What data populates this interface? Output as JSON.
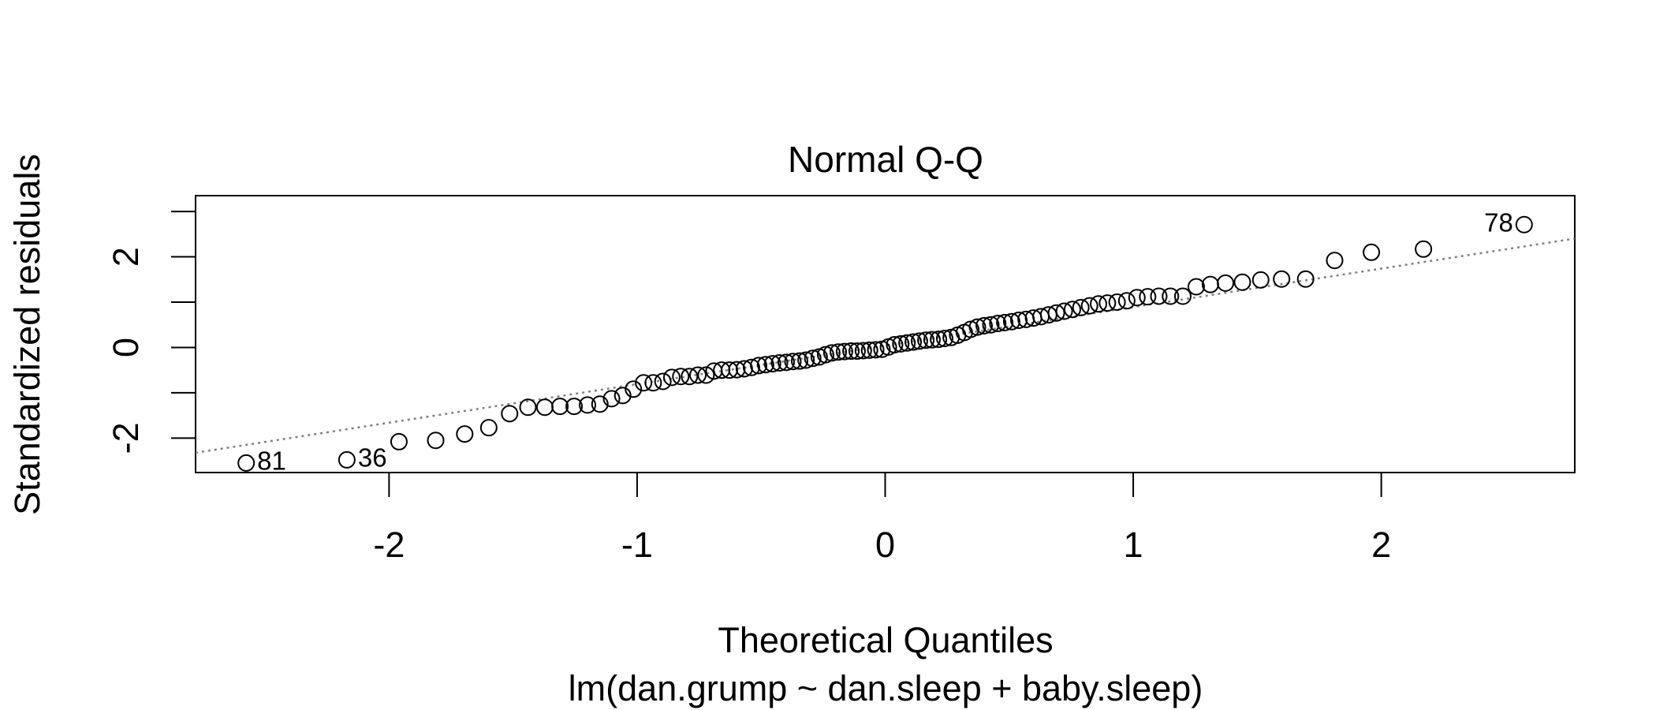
{
  "chart_data": {
    "type": "scatter",
    "title": "Normal Q-Q",
    "x_label": "Theoretical Quantiles",
    "y_label": "Standardized residuals",
    "subtitle": "lm(dan.grump ~ dan.sleep + baby.sleep)",
    "color": "#000000",
    "x": [
      -2.576,
      -2.17,
      -1.96,
      -1.812,
      -1.695,
      -1.598,
      -1.514,
      -1.44,
      -1.372,
      -1.311,
      -1.254,
      -1.2,
      -1.15,
      -1.103,
      -1.058,
      -1.015,
      -0.974,
      -0.935,
      -0.896,
      -0.86,
      -0.824,
      -0.789,
      -0.755,
      -0.722,
      -0.69,
      -0.659,
      -0.628,
      -0.598,
      -0.568,
      -0.539,
      -0.51,
      -0.482,
      -0.454,
      -0.426,
      -0.399,
      -0.372,
      -0.345,
      -0.319,
      -0.292,
      -0.266,
      -0.24,
      -0.215,
      -0.189,
      -0.164,
      -0.138,
      -0.113,
      -0.088,
      -0.063,
      -0.038,
      -0.013,
      0.013,
      0.038,
      0.063,
      0.088,
      0.113,
      0.138,
      0.164,
      0.189,
      0.215,
      0.24,
      0.266,
      0.292,
      0.319,
      0.345,
      0.372,
      0.399,
      0.426,
      0.454,
      0.482,
      0.51,
      0.539,
      0.568,
      0.598,
      0.628,
      0.659,
      0.69,
      0.722,
      0.755,
      0.789,
      0.824,
      0.86,
      0.896,
      0.935,
      0.974,
      1.015,
      1.058,
      1.103,
      1.15,
      1.2,
      1.254,
      1.311,
      1.372,
      1.44,
      1.514,
      1.598,
      1.695,
      1.812,
      1.96,
      2.17,
      2.576
    ],
    "values": [
      -2.55,
      -2.48,
      -2.08,
      -2.05,
      -1.91,
      -1.77,
      -1.46,
      -1.32,
      -1.32,
      -1.3,
      -1.3,
      -1.27,
      -1.25,
      -1.13,
      -1.06,
      -0.92,
      -0.78,
      -0.78,
      -0.75,
      -0.66,
      -0.64,
      -0.64,
      -0.61,
      -0.61,
      -0.52,
      -0.5,
      -0.5,
      -0.49,
      -0.47,
      -0.44,
      -0.4,
      -0.38,
      -0.36,
      -0.34,
      -0.33,
      -0.31,
      -0.3,
      -0.28,
      -0.24,
      -0.21,
      -0.16,
      -0.12,
      -0.1,
      -0.09,
      -0.08,
      -0.08,
      -0.07,
      -0.06,
      -0.05,
      -0.04,
      0.01,
      0.06,
      0.08,
      0.1,
      0.12,
      0.14,
      0.16,
      0.17,
      0.18,
      0.2,
      0.22,
      0.27,
      0.33,
      0.4,
      0.45,
      0.48,
      0.5,
      0.53,
      0.55,
      0.57,
      0.6,
      0.62,
      0.65,
      0.68,
      0.72,
      0.76,
      0.8,
      0.84,
      0.88,
      0.92,
      0.96,
      0.98,
      1.0,
      1.03,
      1.1,
      1.12,
      1.13,
      1.13,
      1.13,
      1.34,
      1.39,
      1.42,
      1.44,
      1.49,
      1.51,
      1.51,
      1.92,
      2.1,
      2.17,
      2.71
    ],
    "point_labels": [
      "81",
      "36",
      null,
      null,
      null,
      null,
      null,
      null,
      null,
      null,
      null,
      null,
      null,
      null,
      null,
      null,
      null,
      null,
      null,
      null,
      null,
      null,
      null,
      null,
      null,
      null,
      null,
      null,
      null,
      null,
      null,
      null,
      null,
      null,
      null,
      null,
      null,
      null,
      null,
      null,
      null,
      null,
      null,
      null,
      null,
      null,
      null,
      null,
      null,
      null,
      null,
      null,
      null,
      null,
      null,
      null,
      null,
      null,
      null,
      null,
      null,
      null,
      null,
      null,
      null,
      null,
      null,
      null,
      null,
      null,
      null,
      null,
      null,
      null,
      null,
      null,
      null,
      null,
      null,
      null,
      null,
      null,
      null,
      null,
      null,
      null,
      null,
      null,
      null,
      null,
      null,
      null,
      null,
      null,
      null,
      null,
      null,
      null,
      null,
      "78"
    ],
    "reference_line": {
      "intercept": 0.04,
      "slope": 0.85,
      "color": "#808080",
      "style": "dotted"
    },
    "xlim": [
      -2.78,
      2.78
    ],
    "ylim": [
      -2.76,
      3.35
    ],
    "xticks": [
      -2,
      -1,
      0,
      1,
      2
    ],
    "yticks": [
      -2,
      0,
      2
    ],
    "yticks_unlabeled": [
      -1,
      1,
      3
    ],
    "grid": false
  }
}
